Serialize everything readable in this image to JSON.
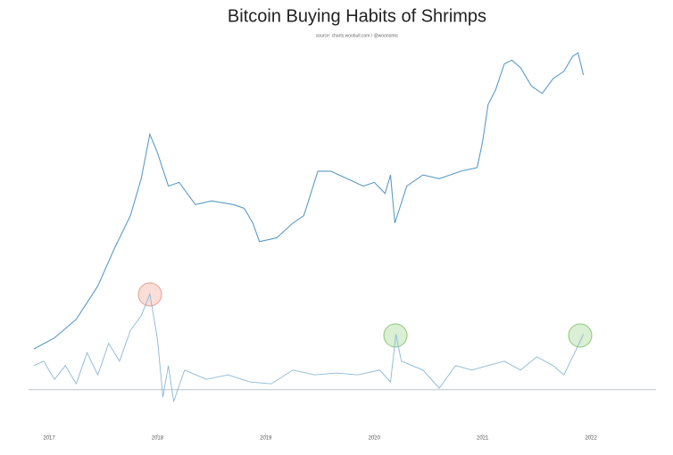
{
  "chart_data": {
    "type": "line",
    "title": "Bitcoin Buying Habits of Shrimps",
    "subtitle": "source: charts.woobull.com / @woonomic",
    "xlim": [
      2016.86,
      2022.6
    ],
    "xticks": [
      2017,
      2018,
      2019,
      2020,
      2021,
      2022
    ],
    "ylim": [
      0,
      100
    ],
    "y2lim": [
      -8,
      92
    ],
    "series": [
      {
        "color": "#5b9bc8",
        "x": [
          2016.86,
          2017.05,
          2017.25,
          2017.45,
          2017.6,
          2017.75,
          2017.85,
          2017.93,
          2018.0,
          2018.1,
          2018.2,
          2018.35,
          2018.5,
          2018.7,
          2018.8,
          2018.88,
          2018.94,
          2019.1,
          2019.25,
          2019.35,
          2019.48,
          2019.6,
          2019.75,
          2019.9,
          2020.0,
          2020.1,
          2020.15,
          2020.19,
          2020.3,
          2020.45,
          2020.6,
          2020.8,
          2020.95,
          2021.0,
          2021.05,
          2021.12,
          2021.2,
          2021.27,
          2021.35,
          2021.45,
          2021.55,
          2021.65,
          2021.75,
          2021.83,
          2021.88,
          2021.93
        ],
        "values": [
          19,
          22,
          27,
          36,
          46,
          55,
          65,
          77,
          72,
          63,
          64,
          58,
          59,
          58,
          57,
          53,
          48,
          49,
          53,
          55,
          67,
          67,
          65,
          63,
          64,
          61,
          66,
          53,
          63,
          66,
          65,
          67,
          68,
          75,
          85,
          89,
          96,
          97,
          95,
          90,
          88,
          92,
          94,
          98,
          99,
          93
        ]
      },
      {
        "color": "#8ab8d8",
        "axis": "y2",
        "x": [
          2016.86,
          2016.95,
          2017.05,
          2017.15,
          2017.25,
          2017.35,
          2017.45,
          2017.55,
          2017.65,
          2017.75,
          2017.85,
          2017.93,
          2018.0,
          2018.05,
          2018.1,
          2018.15,
          2018.25,
          2018.45,
          2018.65,
          2018.85,
          2019.05,
          2019.25,
          2019.45,
          2019.65,
          2019.85,
          2020.05,
          2020.15,
          2020.2,
          2020.25,
          2020.45,
          2020.6,
          2020.75,
          2020.9,
          2021.05,
          2021.2,
          2021.35,
          2021.5,
          2021.65,
          2021.75,
          2021.85,
          2021.93
        ],
        "values": [
          6.5,
          7.7,
          2.8,
          6.5,
          1.6,
          10,
          4,
          12.5,
          7.7,
          16,
          20,
          25.8,
          13.7,
          -2,
          6.5,
          -3.2,
          5.3,
          2.8,
          4,
          2.1,
          1.6,
          5.3,
          4,
          4.5,
          4,
          5.3,
          2.1,
          15,
          7.7,
          5.3,
          0.4,
          6.5,
          5.3,
          6.5,
          7.7,
          5.3,
          8.9,
          6.5,
          4,
          10,
          15
        ]
      }
    ]
  }
}
